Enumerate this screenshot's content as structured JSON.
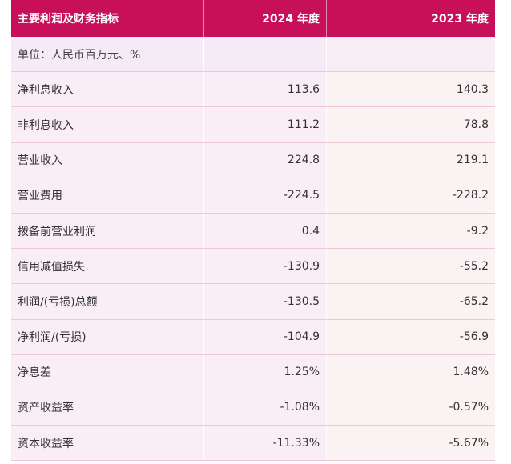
{
  "table": {
    "header": {
      "metric": "主要利润及财务指标",
      "y2024": "2024 年度",
      "y2023": "2023 年度"
    },
    "unit": "单位：人民币百万元、%",
    "rows": [
      {
        "label": "净利息收入",
        "y2024": "113.6",
        "y2023": "140.3"
      },
      {
        "label": "非利息收入",
        "y2024": "111.2",
        "y2023": "78.8"
      },
      {
        "label": "营业收入",
        "y2024": "224.8",
        "y2023": "219.1"
      },
      {
        "label": "营业费用",
        "y2024": "-224.5",
        "y2023": "-228.2"
      },
      {
        "label": "拨备前营业利润",
        "y2024": "0.4",
        "y2023": "-9.2"
      },
      {
        "label": "信用减值损失",
        "y2024": "-130.9",
        "y2023": "-55.2"
      },
      {
        "label": "利润/(亏损)总额",
        "y2024": "-130.5",
        "y2023": "-65.2"
      },
      {
        "label": "净利润/(亏损)",
        "y2024": "-104.9",
        "y2023": "-56.9"
      },
      {
        "label": "净息差",
        "y2024": "1.25%",
        "y2023": "1.48%"
      },
      {
        "label": "资产收益率",
        "y2024": "-1.08%",
        "y2023": "-0.57%"
      },
      {
        "label": "资本收益率",
        "y2024": "-11.33%",
        "y2023": "-5.67%"
      }
    ]
  },
  "colors": {
    "header_bg": "#c8105a",
    "row_bg": "#faeef6",
    "border": "#eec6d6"
  }
}
